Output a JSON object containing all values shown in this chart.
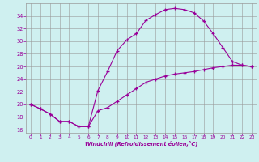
{
  "xlabel": "Windchill (Refroidissement éolien,°C)",
  "xlim": [
    -0.5,
    23.5
  ],
  "ylim": [
    15.5,
    36.0
  ],
  "yticks": [
    16,
    18,
    20,
    22,
    24,
    26,
    28,
    30,
    32,
    34
  ],
  "xticks": [
    0,
    1,
    2,
    3,
    4,
    5,
    6,
    7,
    8,
    9,
    10,
    11,
    12,
    13,
    14,
    15,
    16,
    17,
    18,
    19,
    20,
    21,
    22,
    23
  ],
  "background_color": "#cff0f0",
  "grid_color": "#999999",
  "line_color": "#990099",
  "curve1_x": [
    0,
    1,
    2,
    3,
    4,
    5,
    6,
    7,
    8,
    9,
    10,
    11,
    12,
    13,
    14,
    15,
    16,
    17,
    18,
    19,
    20,
    21,
    22,
    23
  ],
  "curve1_y": [
    20.0,
    19.3,
    18.5,
    17.3,
    17.3,
    16.5,
    16.5,
    22.2,
    25.2,
    28.5,
    30.2,
    31.2,
    33.3,
    34.2,
    35.0,
    35.2,
    35.0,
    34.5,
    33.2,
    31.2,
    29.0,
    26.8,
    26.2,
    26.0
  ],
  "curve2_x": [
    0,
    1,
    2,
    3,
    4,
    5,
    6,
    7,
    8,
    9,
    10,
    11,
    12,
    13,
    14,
    15,
    16,
    17,
    18,
    19,
    20,
    21,
    22,
    23
  ],
  "curve2_y": [
    20.0,
    19.3,
    18.5,
    17.3,
    17.3,
    16.5,
    16.5,
    19.0,
    19.5,
    20.5,
    21.5,
    22.5,
    23.5,
    24.0,
    24.5,
    24.8,
    25.0,
    25.2,
    25.5,
    25.8,
    26.0,
    26.2,
    26.2,
    26.0
  ]
}
